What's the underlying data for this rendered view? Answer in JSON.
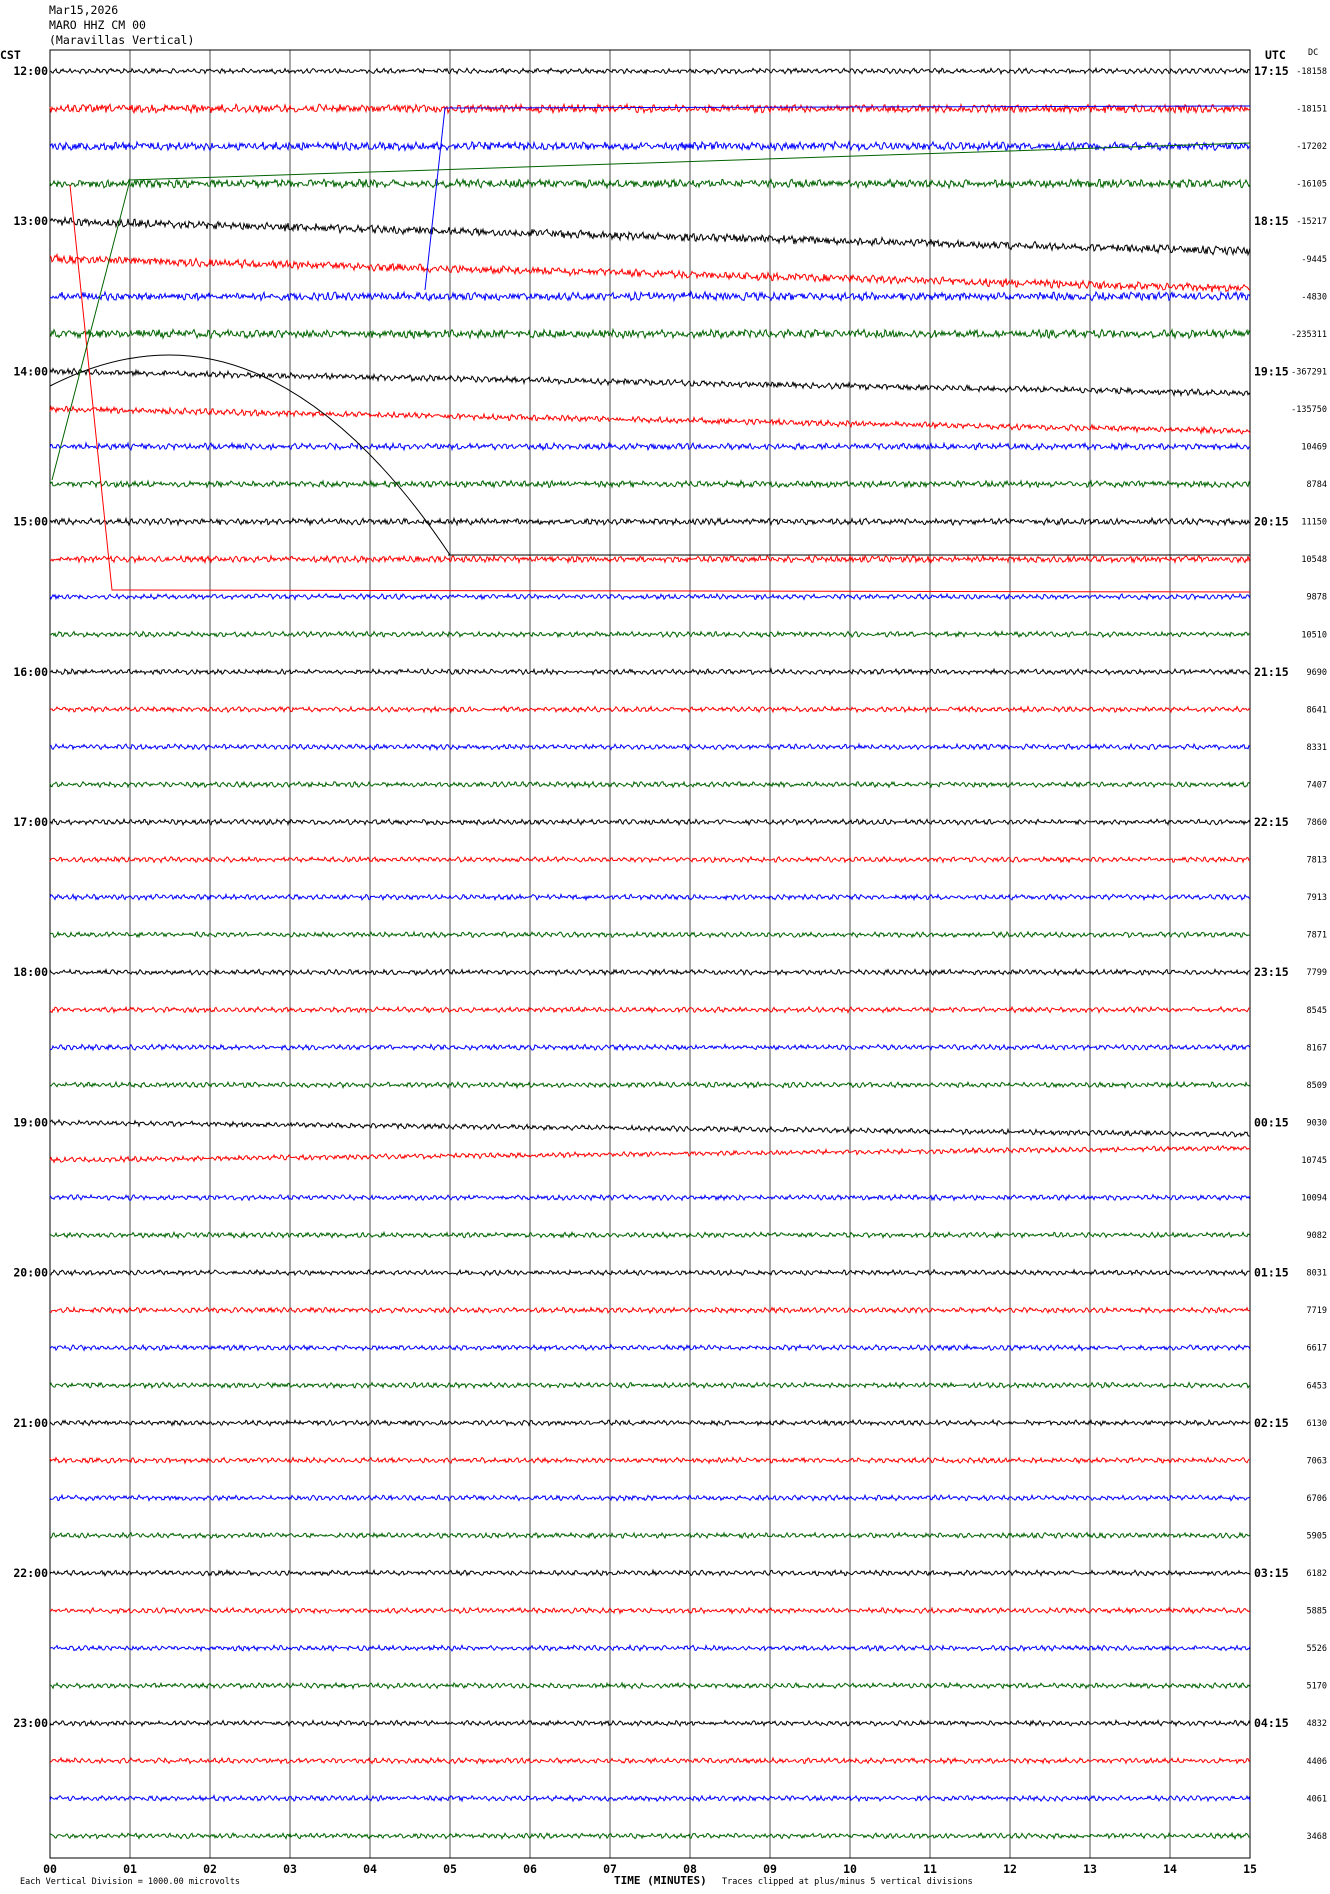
{
  "header": {
    "date": "Mar15,2026",
    "station": "MARO HHZ CM 00",
    "location": "(Maravillas Vertical)"
  },
  "chart_data": {
    "type": "line",
    "title": "Mar15,2026",
    "subtitle": "MARO HHZ CM 00 (Maravillas Vertical)",
    "left_axis_label": "CST",
    "right_axis_label": "UTC",
    "dc_label": "DC",
    "xlabel": "TIME (MINUTES)",
    "xlim": [
      0,
      15
    ],
    "x_ticks": [
      "00",
      "01",
      "02",
      "03",
      "04",
      "05",
      "06",
      "07",
      "08",
      "09",
      "10",
      "11",
      "12",
      "13",
      "14",
      "15"
    ],
    "trace_colors": [
      "#000000",
      "#ff0000",
      "#0000ff",
      "#006400"
    ],
    "cst_hour_labels": [
      "12:00",
      "13:00",
      "14:00",
      "15:00",
      "16:00",
      "17:00",
      "18:00",
      "19:00",
      "20:00",
      "21:00",
      "22:00",
      "23:00"
    ],
    "utc_hour_labels": [
      "17:15",
      "18:15",
      "19:15",
      "20:15",
      "21:15",
      "22:15",
      "23:15",
      "00:15",
      "01:15",
      "02:15",
      "03:15",
      "04:15"
    ],
    "dc_offsets": [
      "-18158",
      "-18151",
      "-17202",
      "-16105",
      "-15217",
      "-9445",
      "-4830",
      "-235311",
      "-367291",
      "-135750",
      "10469",
      "8784",
      "11150",
      "10548",
      "9878",
      "10510",
      "9690",
      "8641",
      "8331",
      "7407",
      "7860",
      "7813",
      "7913",
      "7871",
      "7799",
      "8545",
      "8167",
      "8509",
      "9030",
      "10745",
      "10094",
      "9082",
      "8031",
      "7719",
      "6617",
      "6453",
      "6130",
      "7063",
      "6706",
      "5905",
      "6182",
      "5885",
      "5526",
      "5170",
      "4832",
      "4406",
      "4061",
      "3468"
    ],
    "footer_left": "Each Vertical Division = 1000.00 microvolts",
    "footer_right": "Traces clipped at plus/minus 5 vertical divisions",
    "grid": true,
    "traces_per_hour": 4,
    "minutes_per_trace": 15
  }
}
